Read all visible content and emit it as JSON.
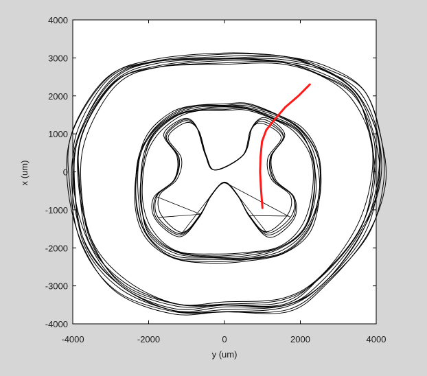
{
  "chart_data": {
    "type": "line",
    "title": "",
    "xlabel": "y (um)",
    "ylabel": "x (um)",
    "xlim": [
      -4000,
      4000
    ],
    "ylim": [
      -4000,
      4000
    ],
    "xticks": [
      -4000,
      -2000,
      0,
      2000,
      4000
    ],
    "yticks": [
      4000,
      3000,
      2000,
      1000,
      0,
      -1000,
      -2000,
      -3000,
      -4000
    ],
    "grid": false,
    "legend": "none",
    "colors": {
      "figure_background": "#d6d6d6",
      "axes_background": "#ffffff",
      "contours": "#000000",
      "trajectory": "#ff1a1a"
    },
    "outer_contour": {
      "layers": 10,
      "points": [
        [
          -2950,
          2400
        ],
        [
          -1800,
          2850
        ],
        [
          0,
          2980
        ],
        [
          1500,
          2950
        ],
        [
          2600,
          2650
        ],
        [
          3500,
          2050
        ],
        [
          3980,
          900
        ],
        [
          4030,
          -300
        ],
        [
          3600,
          -1600
        ],
        [
          2600,
          -2850
        ],
        [
          1600,
          -3500
        ],
        [
          0,
          -3560
        ],
        [
          -1300,
          -3600
        ],
        [
          -2700,
          -3020
        ],
        [
          -3600,
          -1900
        ],
        [
          -3940,
          -350
        ],
        [
          -3820,
          1000
        ]
      ]
    },
    "inner_contour": {
      "layers": 8,
      "points": [
        [
          -1300,
          1500
        ],
        [
          -700,
          1680
        ],
        [
          0,
          1710
        ],
        [
          600,
          1700
        ],
        [
          1400,
          1430
        ],
        [
          2000,
          1070
        ],
        [
          2380,
          380
        ],
        [
          2440,
          -560
        ],
        [
          2150,
          -1500
        ],
        [
          1500,
          -2050
        ],
        [
          600,
          -2250
        ],
        [
          -300,
          -2270
        ],
        [
          -1300,
          -2180
        ],
        [
          -2000,
          -1650
        ],
        [
          -2250,
          -800
        ],
        [
          -2200,
          300
        ],
        [
          -1900,
          1000
        ]
      ]
    },
    "grey_matter_x": {
      "layers": 4,
      "points": [
        [
          -250,
          50
        ],
        [
          -500,
          450
        ],
        [
          -720,
          1150
        ],
        [
          -1050,
          1350
        ],
        [
          -1550,
          950
        ],
        [
          -1200,
          380
        ],
        [
          -1300,
          -200
        ],
        [
          -1800,
          -650
        ],
        [
          -1750,
          -1200
        ],
        [
          -1150,
          -1650
        ],
        [
          -650,
          -1150
        ],
        [
          -350,
          -620
        ],
        [
          0,
          -280
        ],
        [
          350,
          -620
        ],
        [
          650,
          -1150
        ],
        [
          1150,
          -1650
        ],
        [
          1750,
          -1200
        ],
        [
          1800,
          -650
        ],
        [
          1300,
          -200
        ],
        [
          1200,
          380
        ],
        [
          1550,
          950
        ],
        [
          1050,
          1350
        ],
        [
          720,
          1150
        ],
        [
          500,
          450
        ]
      ]
    },
    "trajectory": {
      "x": [
        1000,
        960,
        940,
        950,
        990,
        1100,
        1300,
        1600,
        1950,
        2250
      ],
      "y": [
        -950,
        -400,
        0,
        400,
        800,
        1100,
        1350,
        1700,
        2000,
        2300
      ]
    }
  }
}
